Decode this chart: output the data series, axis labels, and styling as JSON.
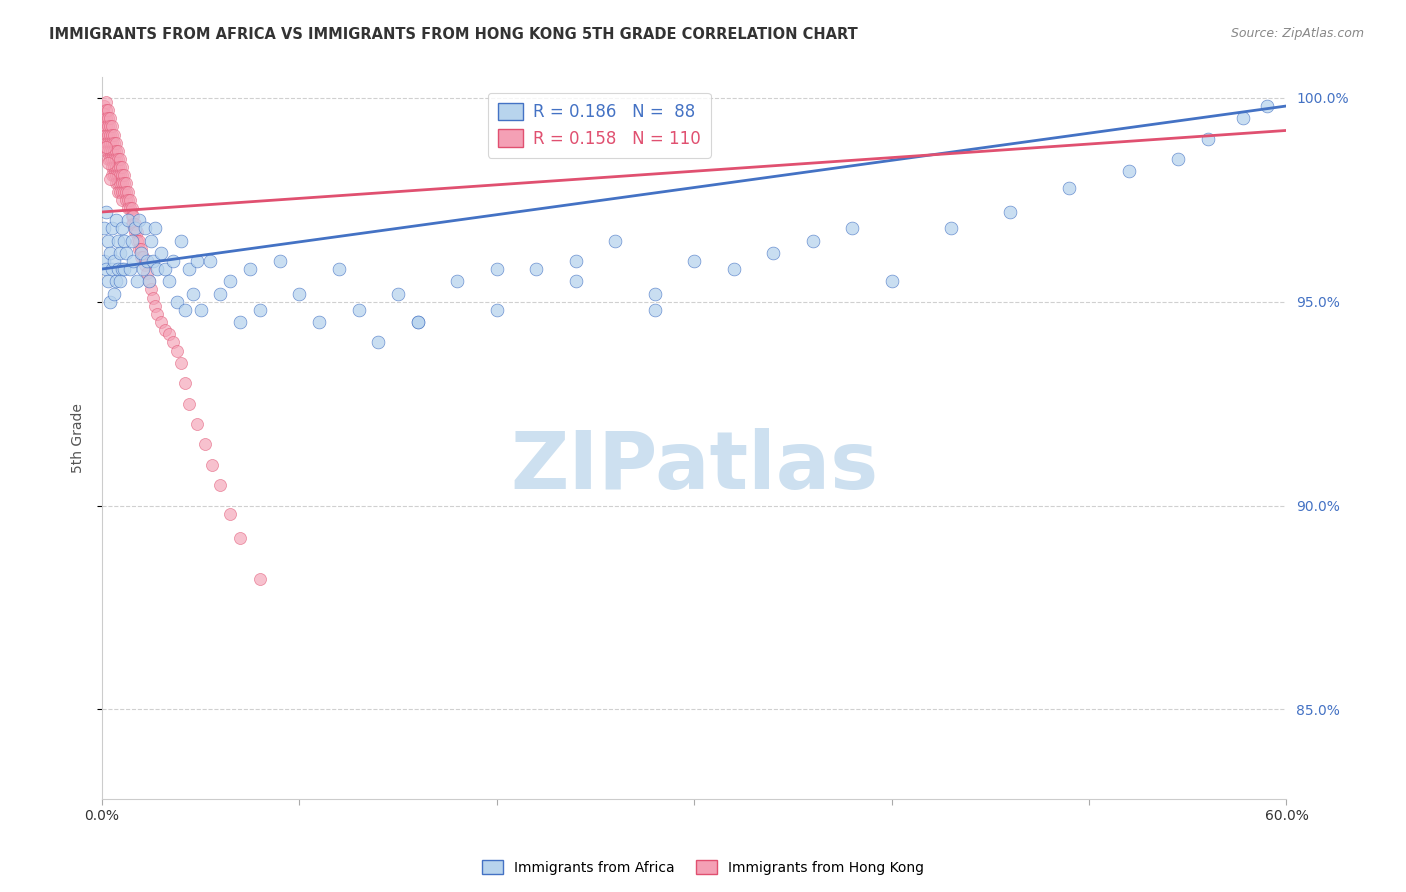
{
  "title": "IMMIGRANTS FROM AFRICA VS IMMIGRANTS FROM HONG KONG 5TH GRADE CORRELATION CHART",
  "source": "Source: ZipAtlas.com",
  "ylabel": "5th Grade",
  "xlim": [
    0.0,
    0.6
  ],
  "ylim": [
    0.828,
    1.005
  ],
  "yticks": [
    0.85,
    0.9,
    0.95,
    1.0
  ],
  "ytick_labels": [
    "85.0%",
    "90.0%",
    "95.0%",
    "100.0%"
  ],
  "series_africa": {
    "label": "Immigrants from Africa",
    "color": "#b8d4ed",
    "line_color": "#4472c4",
    "R": 0.186,
    "N": 88,
    "scatter_alpha": 0.75,
    "marker_size": 85,
    "x": [
      0.001,
      0.001,
      0.002,
      0.002,
      0.003,
      0.003,
      0.004,
      0.004,
      0.005,
      0.005,
      0.006,
      0.006,
      0.007,
      0.007,
      0.008,
      0.008,
      0.009,
      0.009,
      0.01,
      0.01,
      0.011,
      0.011,
      0.012,
      0.013,
      0.014,
      0.015,
      0.016,
      0.017,
      0.018,
      0.019,
      0.02,
      0.021,
      0.022,
      0.023,
      0.024,
      0.025,
      0.026,
      0.027,
      0.028,
      0.03,
      0.032,
      0.034,
      0.036,
      0.038,
      0.04,
      0.042,
      0.044,
      0.046,
      0.048,
      0.05,
      0.055,
      0.06,
      0.065,
      0.07,
      0.075,
      0.08,
      0.09,
      0.1,
      0.11,
      0.12,
      0.13,
      0.14,
      0.15,
      0.16,
      0.18,
      0.2,
      0.22,
      0.24,
      0.26,
      0.28,
      0.3,
      0.32,
      0.34,
      0.36,
      0.38,
      0.4,
      0.43,
      0.46,
      0.49,
      0.52,
      0.545,
      0.56,
      0.578,
      0.59,
      0.24,
      0.28,
      0.2,
      0.16
    ],
    "y": [
      0.968,
      0.96,
      0.972,
      0.958,
      0.965,
      0.955,
      0.962,
      0.95,
      0.968,
      0.958,
      0.96,
      0.952,
      0.97,
      0.955,
      0.965,
      0.958,
      0.962,
      0.955,
      0.968,
      0.958,
      0.965,
      0.958,
      0.962,
      0.97,
      0.958,
      0.965,
      0.96,
      0.968,
      0.955,
      0.97,
      0.962,
      0.958,
      0.968,
      0.96,
      0.955,
      0.965,
      0.96,
      0.968,
      0.958,
      0.962,
      0.958,
      0.955,
      0.96,
      0.95,
      0.965,
      0.948,
      0.958,
      0.952,
      0.96,
      0.948,
      0.96,
      0.952,
      0.955,
      0.945,
      0.958,
      0.948,
      0.96,
      0.952,
      0.945,
      0.958,
      0.948,
      0.94,
      0.952,
      0.945,
      0.955,
      0.948,
      0.958,
      0.96,
      0.965,
      0.948,
      0.96,
      0.958,
      0.962,
      0.965,
      0.968,
      0.955,
      0.968,
      0.972,
      0.978,
      0.982,
      0.985,
      0.99,
      0.995,
      0.998,
      0.955,
      0.952,
      0.958,
      0.945
    ]
  },
  "series_hongkong": {
    "label": "Immigrants from Hong Kong",
    "color": "#f4a0b5",
    "line_color": "#e05070",
    "R": 0.158,
    "N": 110,
    "scatter_alpha": 0.65,
    "marker_size": 75,
    "x": [
      0.001,
      0.001,
      0.001,
      0.001,
      0.001,
      0.002,
      0.002,
      0.002,
      0.002,
      0.002,
      0.002,
      0.002,
      0.003,
      0.003,
      0.003,
      0.003,
      0.003,
      0.003,
      0.003,
      0.004,
      0.004,
      0.004,
      0.004,
      0.004,
      0.004,
      0.005,
      0.005,
      0.005,
      0.005,
      0.005,
      0.005,
      0.005,
      0.006,
      0.006,
      0.006,
      0.006,
      0.006,
      0.006,
      0.007,
      0.007,
      0.007,
      0.007,
      0.007,
      0.007,
      0.008,
      0.008,
      0.008,
      0.008,
      0.008,
      0.008,
      0.009,
      0.009,
      0.009,
      0.009,
      0.009,
      0.01,
      0.01,
      0.01,
      0.01,
      0.01,
      0.011,
      0.011,
      0.011,
      0.012,
      0.012,
      0.012,
      0.013,
      0.013,
      0.013,
      0.014,
      0.014,
      0.015,
      0.015,
      0.015,
      0.016,
      0.016,
      0.017,
      0.017,
      0.018,
      0.018,
      0.019,
      0.019,
      0.02,
      0.02,
      0.021,
      0.022,
      0.023,
      0.024,
      0.025,
      0.026,
      0.027,
      0.028,
      0.03,
      0.032,
      0.034,
      0.036,
      0.038,
      0.04,
      0.042,
      0.044,
      0.048,
      0.052,
      0.056,
      0.06,
      0.065,
      0.07,
      0.08,
      0.002,
      0.003,
      0.004
    ],
    "y": [
      0.998,
      0.996,
      0.994,
      0.992,
      0.99,
      0.999,
      0.997,
      0.995,
      0.993,
      0.991,
      0.989,
      0.987,
      0.997,
      0.995,
      0.993,
      0.991,
      0.989,
      0.987,
      0.985,
      0.995,
      0.993,
      0.991,
      0.989,
      0.987,
      0.985,
      0.993,
      0.991,
      0.989,
      0.987,
      0.985,
      0.983,
      0.981,
      0.991,
      0.989,
      0.987,
      0.985,
      0.983,
      0.981,
      0.989,
      0.987,
      0.985,
      0.983,
      0.981,
      0.979,
      0.987,
      0.985,
      0.983,
      0.981,
      0.979,
      0.977,
      0.985,
      0.983,
      0.981,
      0.979,
      0.977,
      0.983,
      0.981,
      0.979,
      0.977,
      0.975,
      0.981,
      0.979,
      0.977,
      0.979,
      0.977,
      0.975,
      0.977,
      0.975,
      0.973,
      0.975,
      0.973,
      0.973,
      0.971,
      0.969,
      0.971,
      0.969,
      0.969,
      0.967,
      0.967,
      0.965,
      0.965,
      0.963,
      0.963,
      0.961,
      0.961,
      0.959,
      0.957,
      0.955,
      0.953,
      0.951,
      0.949,
      0.947,
      0.945,
      0.943,
      0.942,
      0.94,
      0.938,
      0.935,
      0.93,
      0.925,
      0.92,
      0.915,
      0.91,
      0.905,
      0.898,
      0.892,
      0.882,
      0.988,
      0.984,
      0.98
    ]
  },
  "watermark": "ZIPatlas",
  "watermark_color": "#cde0f0",
  "grid_color": "#d0d0d0",
  "right_axis_color": "#4472c4",
  "background_color": "#ffffff",
  "trendline_africa_x0": 0.0,
  "trendline_africa_y0": 0.958,
  "trendline_africa_x1": 0.6,
  "trendline_africa_y1": 0.998,
  "trendline_hk_x0": 0.0,
  "trendline_hk_y0": 0.972,
  "trendline_hk_x1": 0.6,
  "trendline_hk_y1": 0.992
}
